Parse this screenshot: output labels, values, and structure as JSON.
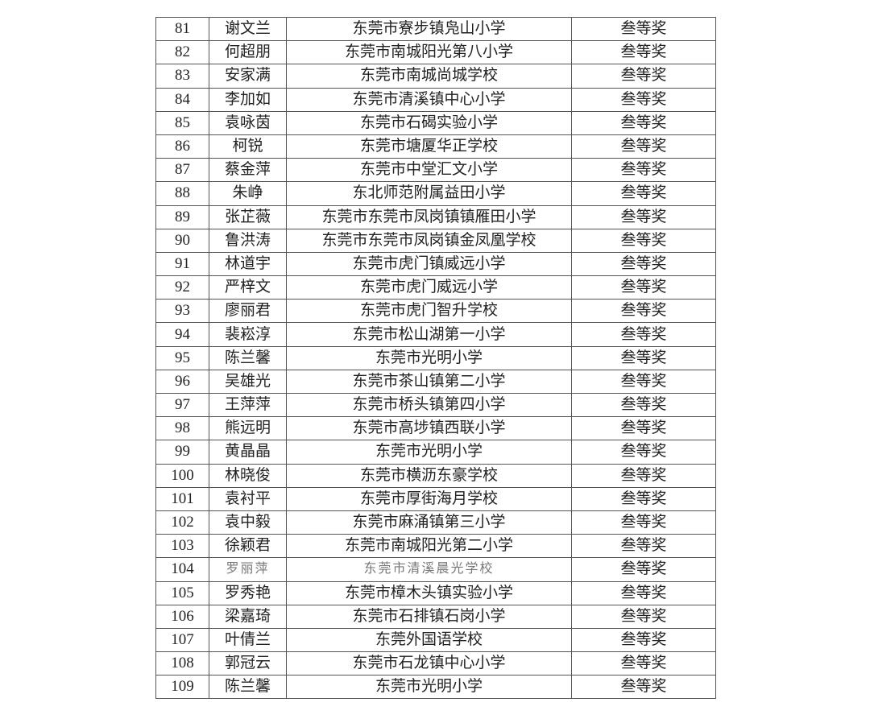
{
  "table": {
    "rows": [
      {
        "no": "81",
        "name": "谢文兰",
        "school": "东莞市寮步镇凫山小学",
        "award": "叁等奖"
      },
      {
        "no": "82",
        "name": "何超朋",
        "school": "东莞市南城阳光第八小学",
        "award": "叁等奖"
      },
      {
        "no": "83",
        "name": "安家满",
        "school": "东莞市南城尚城学校",
        "award": "叁等奖"
      },
      {
        "no": "84",
        "name": "李加如",
        "school": "东莞市清溪镇中心小学",
        "award": "叁等奖"
      },
      {
        "no": "85",
        "name": "袁咏茵",
        "school": "东莞市石碣实验小学",
        "award": "叁等奖"
      },
      {
        "no": "86",
        "name": "柯锐",
        "school": "东莞市塘厦华正学校",
        "award": "叁等奖"
      },
      {
        "no": "87",
        "name": "蔡金萍",
        "school": "东莞市中堂汇文小学",
        "award": "叁等奖"
      },
      {
        "no": "88",
        "name": "朱峥",
        "school": "东北师范附属益田小学",
        "award": "叁等奖"
      },
      {
        "no": "89",
        "name": "张芷薇",
        "school": "东莞市东莞市凤岗镇镇雁田小学",
        "award": "叁等奖"
      },
      {
        "no": "90",
        "name": "鲁洪涛",
        "school": "东莞市东莞市凤岗镇金凤凰学校",
        "award": "叁等奖"
      },
      {
        "no": "91",
        "name": "林道宇",
        "school": "东莞市虎门镇威远小学",
        "award": "叁等奖"
      },
      {
        "no": "92",
        "name": "严梓文",
        "school": "东莞市虎门威远小学",
        "award": "叁等奖"
      },
      {
        "no": "93",
        "name": "廖丽君",
        "school": "东莞市虎门智升学校",
        "award": "叁等奖"
      },
      {
        "no": "94",
        "name": "裴崧淳",
        "school": "东莞市松山湖第一小学",
        "award": "叁等奖"
      },
      {
        "no": "95",
        "name": "陈兰馨",
        "school": "东莞市光明小学",
        "award": "叁等奖"
      },
      {
        "no": "96",
        "name": "吴雄光",
        "school": "东莞市茶山镇第二小学",
        "award": "叁等奖"
      },
      {
        "no": "97",
        "name": "王萍萍",
        "school": "东莞市桥头镇第四小学",
        "award": "叁等奖"
      },
      {
        "no": "98",
        "name": "熊远明",
        "school": "东莞市高埗镇西联小学",
        "award": "叁等奖"
      },
      {
        "no": "99",
        "name": "黄晶晶",
        "school": "东莞市光明小学",
        "award": "叁等奖"
      },
      {
        "no": "100",
        "name": "林晓俊",
        "school": "东莞市横沥东豪学校",
        "award": "叁等奖"
      },
      {
        "no": "101",
        "name": "袁衬平",
        "school": "东莞市厚街海月学校",
        "award": "叁等奖"
      },
      {
        "no": "102",
        "name": "袁中毅",
        "school": "东莞市麻涌镇第三小学",
        "award": "叁等奖"
      },
      {
        "no": "103",
        "name": "徐颖君",
        "school": "东莞市南城阳光第二小学",
        "award": "叁等奖"
      },
      {
        "no": "104",
        "name": "罗丽萍",
        "school": "东莞市清溪晨光学校",
        "award": "叁等奖",
        "faint": true
      },
      {
        "no": "105",
        "name": "罗秀艳",
        "school": "东莞市樟木头镇实验小学",
        "award": "叁等奖"
      },
      {
        "no": "106",
        "name": "梁嘉琦",
        "school": "东莞市石排镇石岗小学",
        "award": "叁等奖"
      },
      {
        "no": "107",
        "name": "叶倩兰",
        "school": "东莞外国语学校",
        "award": "叁等奖"
      },
      {
        "no": "108",
        "name": "郭冠云",
        "school": "东莞市石龙镇中心小学",
        "award": "叁等奖"
      },
      {
        "no": "109",
        "name": "陈兰馨",
        "school": "东莞市光明小学",
        "award": "叁等奖"
      }
    ]
  }
}
